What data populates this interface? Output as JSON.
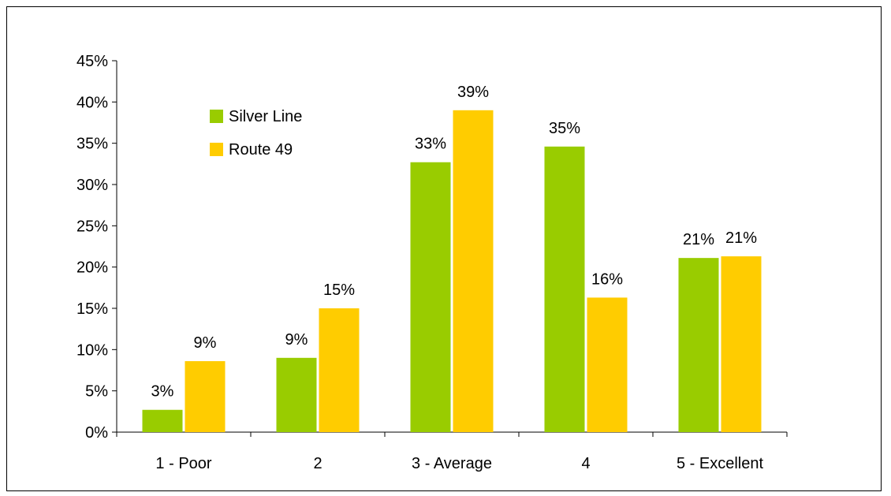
{
  "chart_data": {
    "type": "bar",
    "categories": [
      "1 - Poor",
      "2",
      "3 - Average",
      "4",
      "5 - Excellent"
    ],
    "series": [
      {
        "name": "Silver Line",
        "values": [
          2.7,
          9.0,
          32.7,
          34.6,
          21.1
        ],
        "labels": [
          "3%",
          "9%",
          "33%",
          "35%",
          "21%"
        ]
      },
      {
        "name": "Route 49",
        "values": [
          8.6,
          15.0,
          39.0,
          16.3,
          21.3
        ],
        "labels": [
          "9%",
          "15%",
          "39%",
          "16%",
          "21%"
        ]
      }
    ],
    "ylim": [
      0,
      45
    ],
    "yticks": [
      0,
      5,
      10,
      15,
      20,
      25,
      30,
      35,
      40,
      45
    ],
    "ytick_labels": [
      "0%",
      "5%",
      "10%",
      "15%",
      "20%",
      "25%",
      "30%",
      "35%",
      "40%",
      "45%"
    ],
    "legend_position": "top-left",
    "grid": false
  },
  "colors": {
    "silver_line": "#99CC00",
    "route_49": "#FFCC00"
  }
}
